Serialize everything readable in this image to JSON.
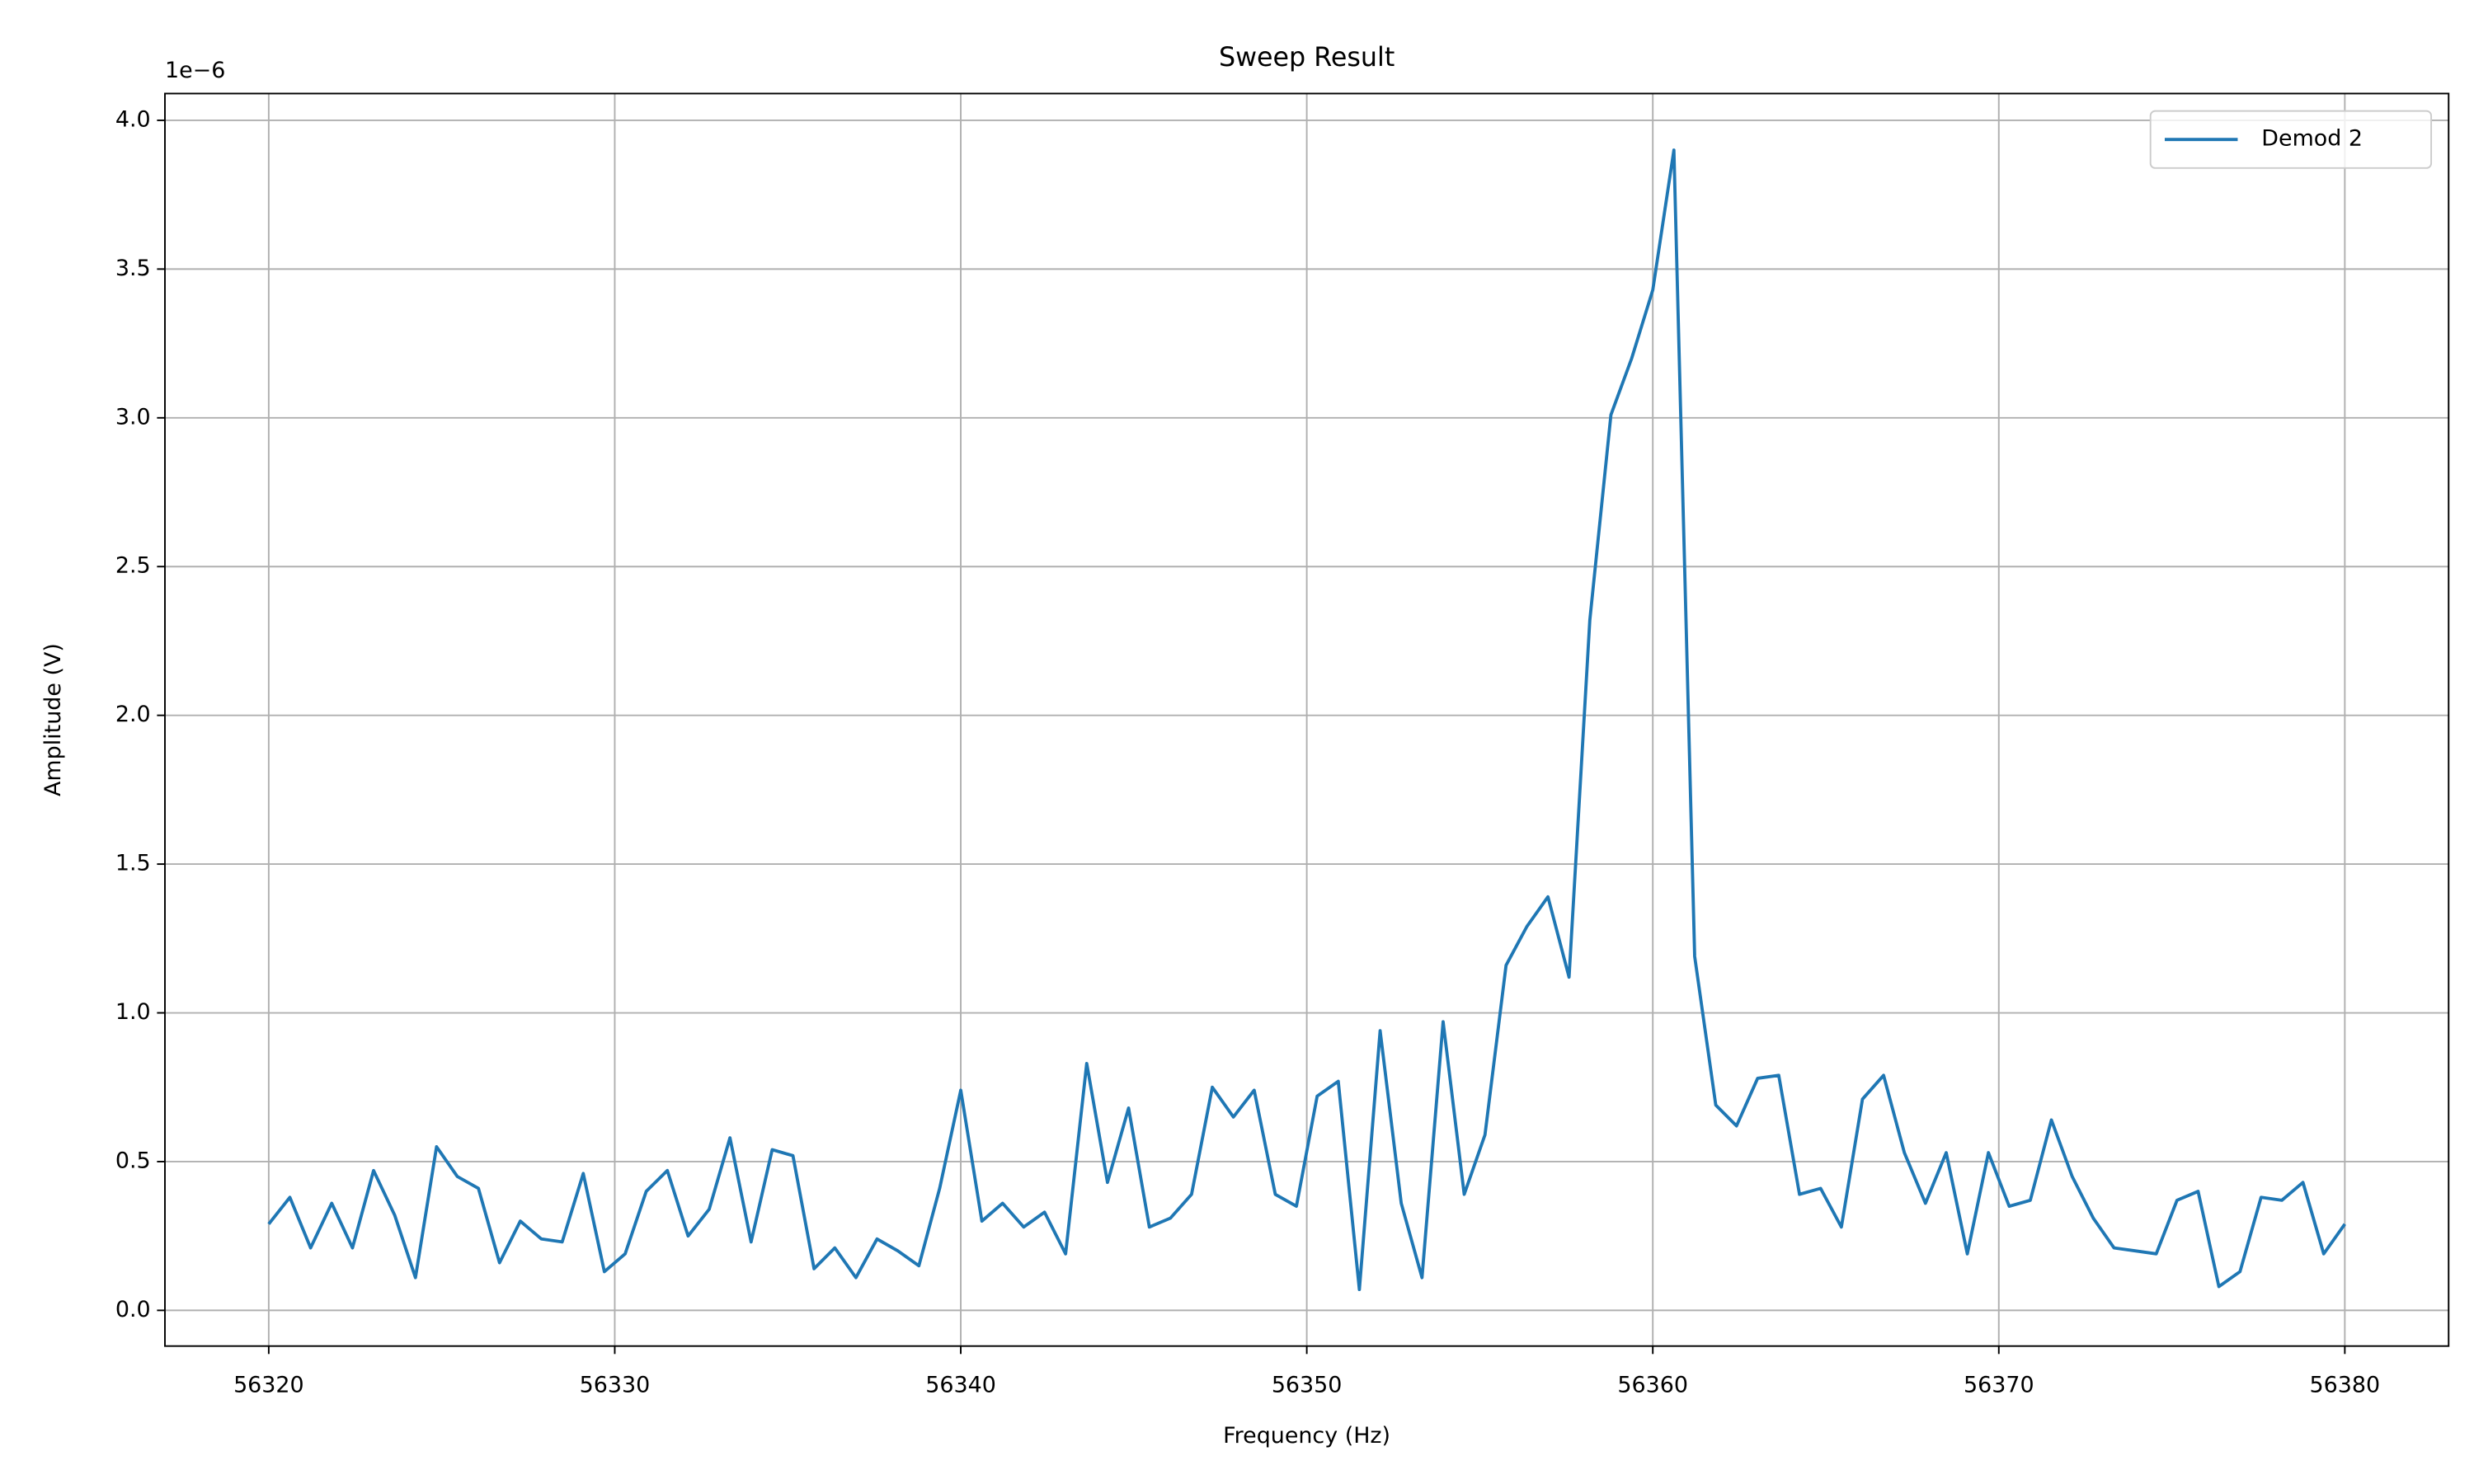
{
  "chart_data": {
    "type": "line",
    "title": "Sweep Result",
    "x_label": "Frequency (Hz)",
    "y_label": "Amplitude (V)",
    "y_offset_label": "1e−6",
    "x": [
      56320,
      56320.61,
      56321.21,
      56321.82,
      56322.42,
      56323.03,
      56323.64,
      56324.24,
      56324.85,
      56325.45,
      56326.06,
      56326.67,
      56327.27,
      56327.88,
      56328.48,
      56329.09,
      56329.7,
      56330.3,
      56330.91,
      56331.52,
      56332.12,
      56332.73,
      56333.33,
      56333.94,
      56334.55,
      56335.15,
      56335.76,
      56336.36,
      56336.97,
      56337.58,
      56338.18,
      56338.79,
      56339.39,
      56340.0,
      56340.61,
      56341.21,
      56341.82,
      56342.42,
      56343.03,
      56343.64,
      56344.24,
      56344.85,
      56345.45,
      56346.06,
      56346.67,
      56347.27,
      56347.88,
      56348.48,
      56349.09,
      56349.7,
      56350.3,
      56350.91,
      56351.52,
      56352.12,
      56352.73,
      56353.33,
      56353.94,
      56354.55,
      56355.15,
      56355.76,
      56356.36,
      56356.97,
      56357.58,
      56358.18,
      56358.79,
      56359.39,
      56360.0,
      56360.61,
      56361.21,
      56361.82,
      56362.42,
      56363.03,
      56363.64,
      56364.24,
      56364.85,
      56365.45,
      56366.06,
      56366.67,
      56367.27,
      56367.88,
      56368.48,
      56369.09,
      56369.7,
      56370.3,
      56370.91,
      56371.52,
      56372.12,
      56372.73,
      56373.33,
      56373.94,
      56374.55,
      56375.15,
      56375.76,
      56376.36,
      56376.97,
      56377.58,
      56378.18,
      56378.79,
      56379.39,
      56380
    ],
    "series": [
      {
        "name": "Demod 2",
        "color": "#1f77b4",
        "values": [
          0.29,
          0.38,
          0.21,
          0.36,
          0.21,
          0.47,
          0.32,
          0.11,
          0.55,
          0.45,
          0.41,
          0.16,
          0.3,
          0.24,
          0.23,
          0.46,
          0.13,
          0.19,
          0.4,
          0.47,
          0.25,
          0.34,
          0.58,
          0.23,
          0.54,
          0.52,
          0.14,
          0.21,
          0.11,
          0.24,
          0.2,
          0.15,
          0.41,
          0.74,
          0.3,
          0.36,
          0.28,
          0.33,
          0.19,
          0.83,
          0.43,
          0.68,
          0.28,
          0.31,
          0.39,
          0.75,
          0.65,
          0.74,
          0.39,
          0.35,
          0.72,
          0.77,
          0.07,
          0.94,
          0.36,
          0.11,
          0.97,
          0.39,
          0.59,
          1.16,
          1.29,
          1.39,
          1.12,
          2.32,
          3.01,
          3.2,
          3.43,
          3.9,
          1.19,
          0.69,
          0.62,
          0.78,
          0.79,
          0.39,
          0.41,
          0.28,
          0.71,
          0.79,
          0.53,
          0.36,
          0.53,
          0.19,
          0.53,
          0.35,
          0.37,
          0.64,
          0.45,
          0.31,
          0.21,
          0.2,
          0.19,
          0.37,
          0.4,
          0.08,
          0.13,
          0.38,
          0.37,
          0.43,
          0.19,
          0.29
        ]
      }
    ],
    "xlim": [
      56317,
      56383
    ],
    "ylim": [
      -0.12,
      4.09
    ],
    "xticks": [
      56320,
      56330,
      56340,
      56350,
      56360,
      56370,
      56380
    ],
    "yticks": [
      {
        "value": 0,
        "label": "0.0"
      },
      0.5,
      {
        "value": 1,
        "label": "1.0"
      },
      1.5,
      {
        "value": 2,
        "label": "2.0"
      },
      2.5,
      {
        "value": 3,
        "label": "3.0"
      },
      3.5,
      {
        "value": 4,
        "label": "4.0"
      }
    ],
    "grid": true,
    "legend": "upper-right"
  }
}
